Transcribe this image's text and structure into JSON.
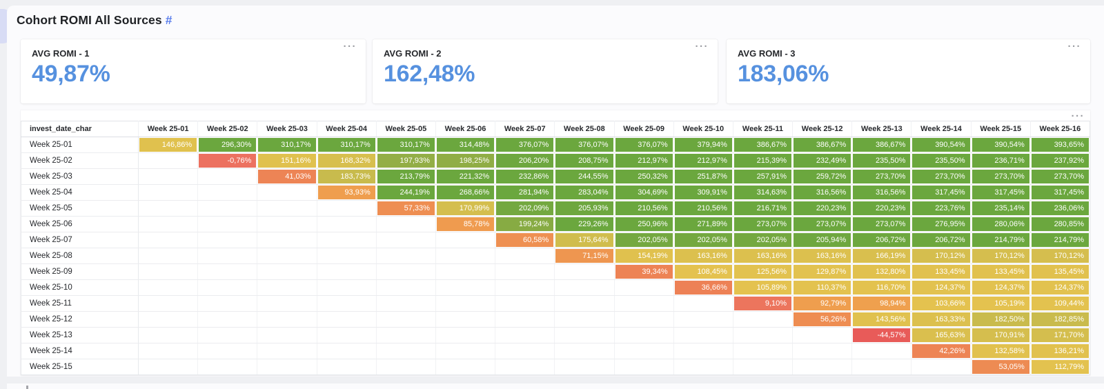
{
  "title": {
    "text": "Cohort ROMI All Sources",
    "link_label": "#"
  },
  "menu_icon": "···",
  "kpi": {
    "cards": [
      {
        "label": "AVG ROMI - 1",
        "value": "49,87%"
      },
      {
        "label": "AVG ROMI - 2",
        "value": "162,48%"
      },
      {
        "label": "AVG ROMI - 3",
        "value": "183,06%"
      }
    ]
  },
  "colors": {
    "kpi_value": "#5691DF",
    "title_link": "#587CEC",
    "cell_text": "#FFFFFF",
    "heatmap_stops": [
      [
        -50,
        "#E85858"
      ],
      [
        0,
        "#EC7160"
      ],
      [
        40,
        "#ED8355"
      ],
      [
        70,
        "#EE9650"
      ],
      [
        99,
        "#EFA04E"
      ],
      [
        103,
        "#E4C24F"
      ],
      [
        160,
        "#DFC14E"
      ],
      [
        186,
        "#C6BA4D"
      ],
      [
        196,
        "#A6B149"
      ],
      [
        201,
        "#76A840"
      ],
      [
        208,
        "#6BA73E"
      ]
    ]
  },
  "chart_data": {
    "type": "heatmap",
    "title": "Cohort ROMI All Sources",
    "row_header": "invest_date_char",
    "value_format": "percent, comma decimal, 2dp",
    "columns": [
      "Week 25-01",
      "Week 25-02",
      "Week 25-03",
      "Week 25-04",
      "Week 25-05",
      "Week 25-06",
      "Week 25-07",
      "Week 25-08",
      "Week 25-09",
      "Week 25-10",
      "Week 25-11",
      "Week 25-12",
      "Week 25-13",
      "Week 25-14",
      "Week 25-15",
      "Week 25-16"
    ],
    "rows": [
      {
        "label": "Week 25-01",
        "values": [
          146.86,
          296.3,
          310.17,
          310.17,
          310.17,
          314.48,
          376.07,
          376.07,
          376.07,
          379.94,
          386.67,
          386.67,
          386.67,
          390.54,
          390.54,
          393.65
        ]
      },
      {
        "label": "Week 25-02",
        "values": [
          null,
          -0.76,
          151.16,
          168.32,
          197.93,
          198.25,
          206.2,
          208.75,
          212.97,
          212.97,
          215.39,
          232.49,
          235.5,
          235.5,
          236.71,
          237.92
        ]
      },
      {
        "label": "Week 25-03",
        "values": [
          null,
          null,
          41.03,
          183.73,
          213.79,
          221.32,
          232.86,
          244.55,
          250.32,
          251.87,
          257.91,
          259.72,
          273.7,
          273.7,
          273.7,
          273.7
        ]
      },
      {
        "label": "Week 25-04",
        "values": [
          null,
          null,
          null,
          93.93,
          244.19,
          268.66,
          281.94,
          283.04,
          304.69,
          309.91,
          314.63,
          316.56,
          316.56,
          317.45,
          317.45,
          317.45
        ]
      },
      {
        "label": "Week 25-05",
        "values": [
          null,
          null,
          null,
          null,
          57.33,
          170.99,
          202.09,
          205.93,
          210.56,
          210.56,
          216.71,
          220.23,
          220.23,
          223.76,
          235.14,
          236.06
        ]
      },
      {
        "label": "Week 25-06",
        "values": [
          null,
          null,
          null,
          null,
          null,
          85.78,
          199.24,
          229.26,
          250.96,
          271.89,
          273.07,
          273.07,
          273.07,
          276.95,
          280.06,
          280.85
        ]
      },
      {
        "label": "Week 25-07",
        "values": [
          null,
          null,
          null,
          null,
          null,
          null,
          60.58,
          175.64,
          202.05,
          202.05,
          202.05,
          205.94,
          206.72,
          206.72,
          214.79,
          214.79
        ]
      },
      {
        "label": "Week 25-08",
        "values": [
          null,
          null,
          null,
          null,
          null,
          null,
          null,
          71.15,
          154.19,
          163.16,
          163.16,
          163.16,
          166.19,
          170.12,
          170.12,
          170.12
        ]
      },
      {
        "label": "Week 25-09",
        "values": [
          null,
          null,
          null,
          null,
          null,
          null,
          null,
          null,
          39.34,
          108.45,
          125.56,
          129.87,
          132.8,
          133.45,
          133.45,
          135.45
        ]
      },
      {
        "label": "Week 25-10",
        "values": [
          null,
          null,
          null,
          null,
          null,
          null,
          null,
          null,
          null,
          36.66,
          105.89,
          110.37,
          116.7,
          124.37,
          124.37,
          124.37
        ]
      },
      {
        "label": "Week 25-11",
        "values": [
          null,
          null,
          null,
          null,
          null,
          null,
          null,
          null,
          null,
          null,
          9.1,
          92.79,
          98.94,
          103.66,
          105.19,
          109.44
        ]
      },
      {
        "label": "Week 25-12",
        "values": [
          null,
          null,
          null,
          null,
          null,
          null,
          null,
          null,
          null,
          null,
          null,
          56.26,
          143.56,
          163.33,
          182.5,
          182.85
        ]
      },
      {
        "label": "Week 25-13",
        "values": [
          null,
          null,
          null,
          null,
          null,
          null,
          null,
          null,
          null,
          null,
          null,
          null,
          -44.57,
          165.63,
          170.91,
          171.7
        ]
      },
      {
        "label": "Week 25-14",
        "values": [
          null,
          null,
          null,
          null,
          null,
          null,
          null,
          null,
          null,
          null,
          null,
          null,
          null,
          42.26,
          132.58,
          136.21
        ]
      },
      {
        "label": "Week 25-15",
        "values": [
          null,
          null,
          null,
          null,
          null,
          null,
          null,
          null,
          null,
          null,
          null,
          null,
          null,
          null,
          53.05,
          112.79
        ]
      }
    ]
  }
}
